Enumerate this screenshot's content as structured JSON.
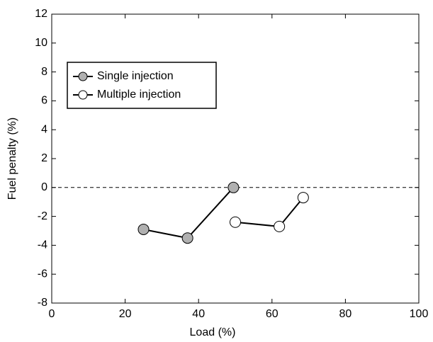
{
  "chart_data": {
    "type": "line",
    "x_label": "Load (%)",
    "y_label": "Fuel penalty (%)",
    "series": [
      {
        "name": "Single injection",
        "color": "#000000",
        "marker_fill": "#b0b0b0",
        "x": [
          25,
          37,
          49.5
        ],
        "values": [
          -2.9,
          -3.5,
          0
        ]
      },
      {
        "name": "Multiple injection",
        "color": "#000000",
        "marker_fill": "#ffffff",
        "x": [
          50,
          62,
          68.5
        ],
        "values": [
          -2.4,
          -2.7,
          -0.7
        ]
      }
    ],
    "xlim": [
      0,
      100
    ],
    "xticks": [
      0,
      20,
      40,
      60,
      80,
      100
    ],
    "ylim": [
      -8,
      12
    ],
    "yticks": [
      -8,
      -6,
      -4,
      -2,
      0,
      2,
      4,
      6,
      8,
      10,
      12
    ],
    "reference_line": 0,
    "legend": "upper-left",
    "grid": false
  }
}
